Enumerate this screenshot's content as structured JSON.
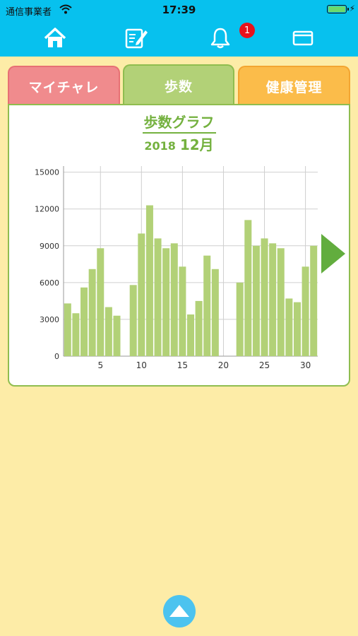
{
  "status_bar": {
    "carrier": "通信事業者",
    "time": "17:39",
    "battery_level": 1.0
  },
  "nav": {
    "icons": [
      "home-icon",
      "edit-note-icon",
      "bell-icon",
      "card-icon"
    ],
    "notification_badge": "1"
  },
  "tabs": [
    {
      "label": "マイチャレ",
      "color": "#f08b8d"
    },
    {
      "label": "歩数",
      "color": "#b2d177",
      "selected": true
    },
    {
      "label": "健康管理",
      "color": "#fbbc4a"
    }
  ],
  "graph": {
    "title": "歩数グラフ",
    "year": "2018",
    "month": "12月"
  },
  "colors": {
    "accent": "#07c1ee",
    "bar": "#b2d177",
    "title": "#74b13f",
    "background": "#fdeca7"
  },
  "chart_data": {
    "type": "bar",
    "x": [
      1,
      2,
      3,
      4,
      5,
      6,
      7,
      8,
      9,
      10,
      11,
      12,
      13,
      14,
      15,
      16,
      17,
      18,
      19,
      20,
      21,
      22,
      23,
      24,
      25,
      26,
      27,
      28,
      29,
      30,
      31
    ],
    "values": [
      4300,
      3500,
      5600,
      7100,
      8800,
      4000,
      3300,
      0,
      5800,
      10000,
      12300,
      9600,
      8800,
      9200,
      7300,
      3400,
      4500,
      8200,
      7100,
      0,
      0,
      6000,
      11100,
      9000,
      9600,
      9200,
      8800,
      4700,
      4400,
      7300,
      9000
    ],
    "xticks": [
      5,
      10,
      15,
      20,
      25,
      30
    ],
    "yticks": [
      0,
      3000,
      6000,
      9000,
      12000,
      15000
    ],
    "ylim": [
      0,
      15500
    ],
    "grid": true
  }
}
